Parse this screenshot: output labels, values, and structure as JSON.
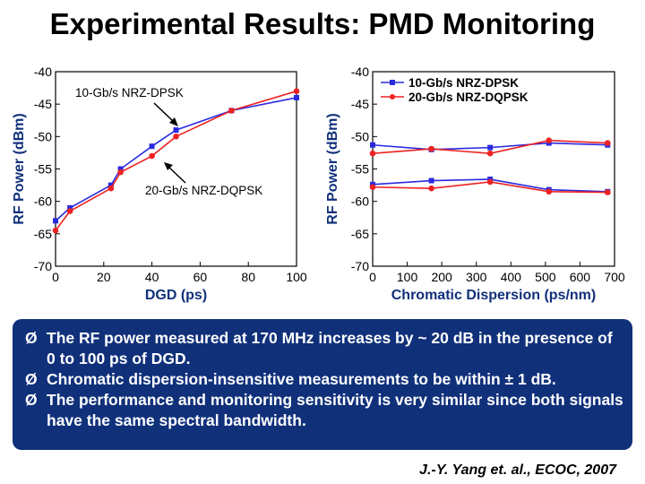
{
  "slide": {
    "title": "Experimental Results: PMD Monitoring",
    "bullet_marker": "Ø",
    "bullets": [
      "The RF power measured at 170 MHz increases by ~ 20 dB in the presence of 0 to 100 ps of DGD.",
      "Chromatic dispersion-insensitive measurements to be within ± 1 dB.",
      "The performance and monitoring sensitivity is very similar since both signals have the same spectral bandwidth."
    ],
    "citation": "J.-Y. Yang et. al., ECOC, 2007"
  },
  "colors": {
    "blue": "#2a2ae0",
    "red": "#ee2222",
    "box": "#10307a"
  },
  "chart_data": [
    {
      "type": "line",
      "xlabel": "DGD (ps)",
      "ylabel": "RF Power (dBm)",
      "xlim": [
        0,
        100
      ],
      "ylim": [
        -70,
        -40
      ],
      "xticks": [
        0,
        20,
        40,
        60,
        80,
        100
      ],
      "yticks": [
        -70,
        -65,
        -60,
        -55,
        -50,
        -45,
        -40
      ],
      "annotations": [
        "10-Gb/s NRZ-DPSK",
        "20-Gb/s NRZ-DQPSK"
      ],
      "series": [
        {
          "name": "10-Gb/s NRZ-DPSK",
          "color": "#2a2ae0",
          "x": [
            0,
            6,
            23,
            27,
            40,
            50,
            73,
            100
          ],
          "y": [
            -63,
            -61,
            -57.5,
            -55,
            -51.5,
            -49,
            -46,
            -44
          ]
        },
        {
          "name": "20-Gb/s NRZ-DQPSK",
          "color": "#ee2222",
          "x": [
            0,
            6,
            23,
            27,
            40,
            50,
            73,
            100
          ],
          "y": [
            -64.5,
            -61.5,
            -58,
            -55.5,
            -53,
            -50,
            -46,
            -43
          ]
        }
      ]
    },
    {
      "type": "line",
      "xlabel": "Chromatic Dispersion (ps/nm)",
      "ylabel": "RF Power (dBm)",
      "xlim": [
        0,
        700
      ],
      "ylim": [
        -70,
        -40
      ],
      "xticks": [
        0,
        100,
        200,
        300,
        400,
        500,
        600,
        700
      ],
      "yticks": [
        -70,
        -65,
        -60,
        -55,
        -50,
        -45,
        -40
      ],
      "legend": "top-right",
      "series": [
        {
          "name": "10-Gb/s NRZ-DPSK",
          "color": "#2a2ae0",
          "x": [
            0,
            170,
            340,
            510,
            680
          ],
          "y": [
            -51.3,
            -52,
            -51.7,
            -51,
            -51.3
          ]
        },
        {
          "name": "20-Gb/s NRZ-DQPSK",
          "color": "#ee2222",
          "x": [
            0,
            170,
            340,
            510,
            680
          ],
          "y": [
            -52.6,
            -51.9,
            -52.6,
            -50.6,
            -51
          ]
        },
        {
          "name": "10-Gb/s NRZ-DPSK",
          "color": "#2a2ae0",
          "x": [
            0,
            170,
            340,
            510,
            680
          ],
          "y": [
            -57.4,
            -56.8,
            -56.6,
            -58.2,
            -58.5
          ]
        },
        {
          "name": "20-Gb/s NRZ-DQPSK",
          "color": "#ee2222",
          "x": [
            0,
            170,
            340,
            510,
            680
          ],
          "y": [
            -57.8,
            -58,
            -57,
            -58.5,
            -58.6
          ]
        }
      ]
    }
  ]
}
